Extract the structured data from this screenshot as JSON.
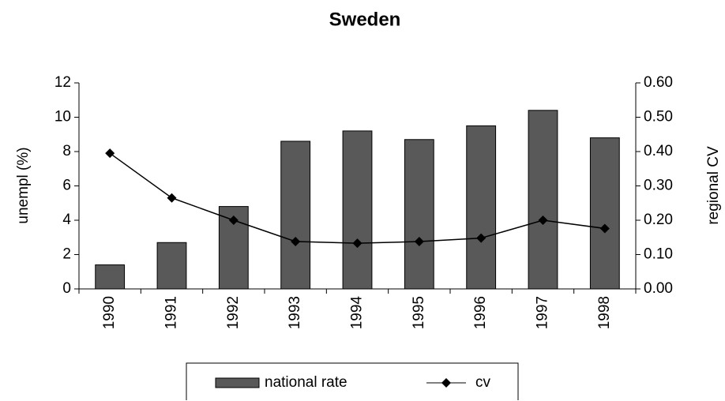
{
  "chart_data": {
    "type": "bar",
    "title": "Sweden",
    "y_label": "unempl (%)",
    "y2_label": "regional CV",
    "categories": [
      "1990",
      "1991",
      "1992",
      "1993",
      "1994",
      "1995",
      "1996",
      "1997",
      "1998"
    ],
    "series": [
      {
        "name": "national rate",
        "type": "bar",
        "color": "#595959",
        "values": [
          1.4,
          2.7,
          4.8,
          8.6,
          9.2,
          8.7,
          9.5,
          10.4,
          8.8
        ]
      },
      {
        "name": "cv",
        "type": "line",
        "axis": "y2",
        "color": "#000000",
        "marker": "diamond",
        "values": [
          0.395,
          0.265,
          0.2,
          0.138,
          0.133,
          0.138,
          0.148,
          0.2,
          0.176
        ]
      }
    ],
    "ylim": [
      0,
      12
    ],
    "yticks": [
      0,
      2,
      4,
      6,
      8,
      10,
      12
    ],
    "y2lim": [
      0,
      0.6
    ],
    "y2ticks": [
      {
        "value": 0,
        "label": "0.00"
      },
      {
        "value": 0.1,
        "label": "0.10"
      },
      {
        "value": 0.2,
        "label": "0.20"
      },
      {
        "value": 0.3,
        "label": "0.30"
      },
      {
        "value": 0.4,
        "label": "0.40"
      },
      {
        "value": 0.5,
        "label": "0.50"
      },
      {
        "value": 0.6,
        "label": "0.60"
      }
    ],
    "grid": false,
    "legend": "bottom"
  }
}
